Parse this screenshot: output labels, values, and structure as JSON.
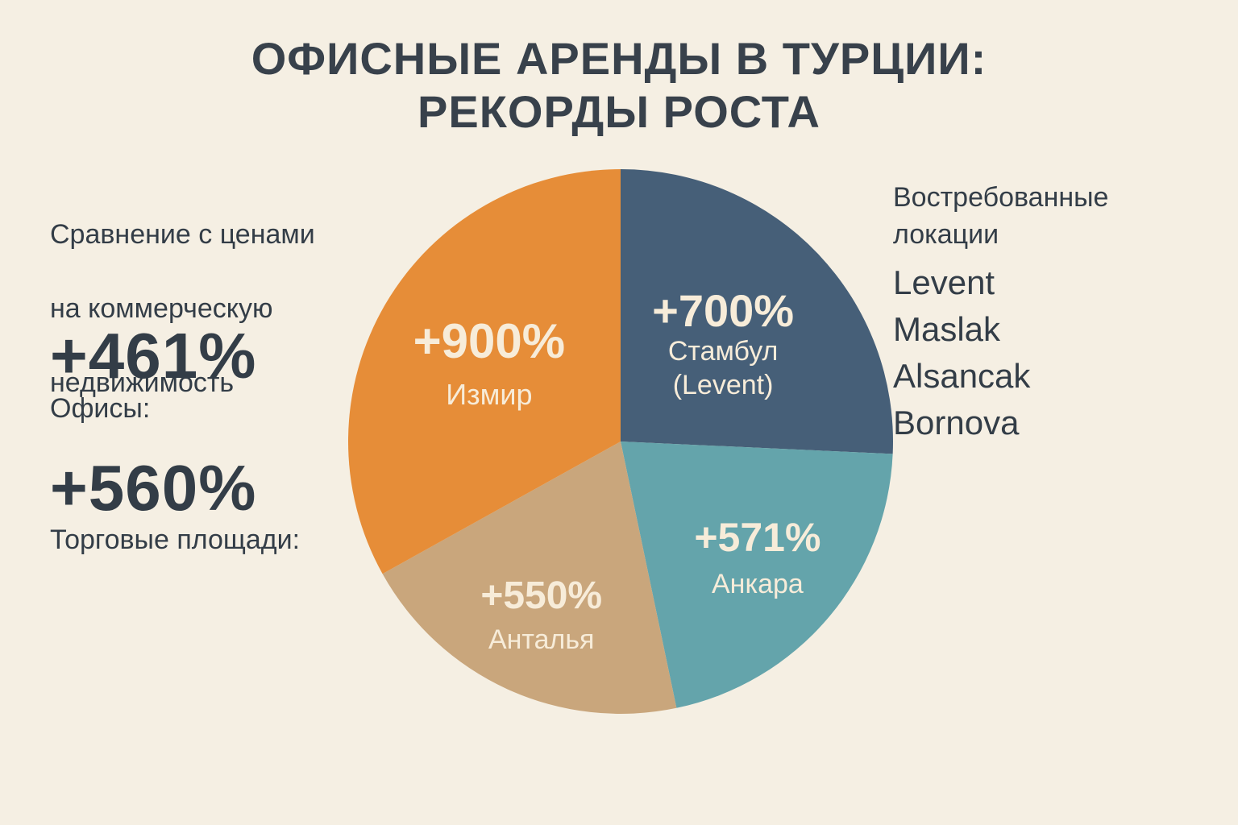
{
  "colors": {
    "background": "#f5efe3",
    "text": "#333d47"
  },
  "title": {
    "line1": "ОФИСНЫЕ АРЕНДЫ В ТУРЦИИ:",
    "line2": "РЕКОРДЫ РОСТА"
  },
  "left_panel": {
    "subtitle_lines": [
      "Сравнение с ценами",
      "на коммерческую",
      "недвижимость"
    ],
    "stats": [
      {
        "value": "+461%",
        "label": "Офисы:"
      },
      {
        "value": "+560%",
        "label": "Торговые площади:"
      }
    ]
  },
  "right_panel": {
    "title_lines": [
      "Востребованные",
      "локации"
    ],
    "locations": [
      "Levent",
      "Maslak",
      "Alsancak",
      "Bornova"
    ]
  },
  "chart_data": {
    "type": "pie",
    "title": "",
    "slices": [
      {
        "label_lines": [
          "Стамбул",
          "(Levent)"
        ],
        "value": 700,
        "display": "+700%",
        "color": "#465f78"
      },
      {
        "label_lines": [
          "Анкара"
        ],
        "value": 571,
        "display": "+571%",
        "color": "#64a4ab"
      },
      {
        "label_lines": [
          "Анталья"
        ],
        "value": 550,
        "display": "+550%",
        "color": "#c9a67c"
      },
      {
        "label_lines": [
          "Измир"
        ],
        "value": 900,
        "display": "+900%",
        "color": "#e68d38"
      }
    ]
  }
}
